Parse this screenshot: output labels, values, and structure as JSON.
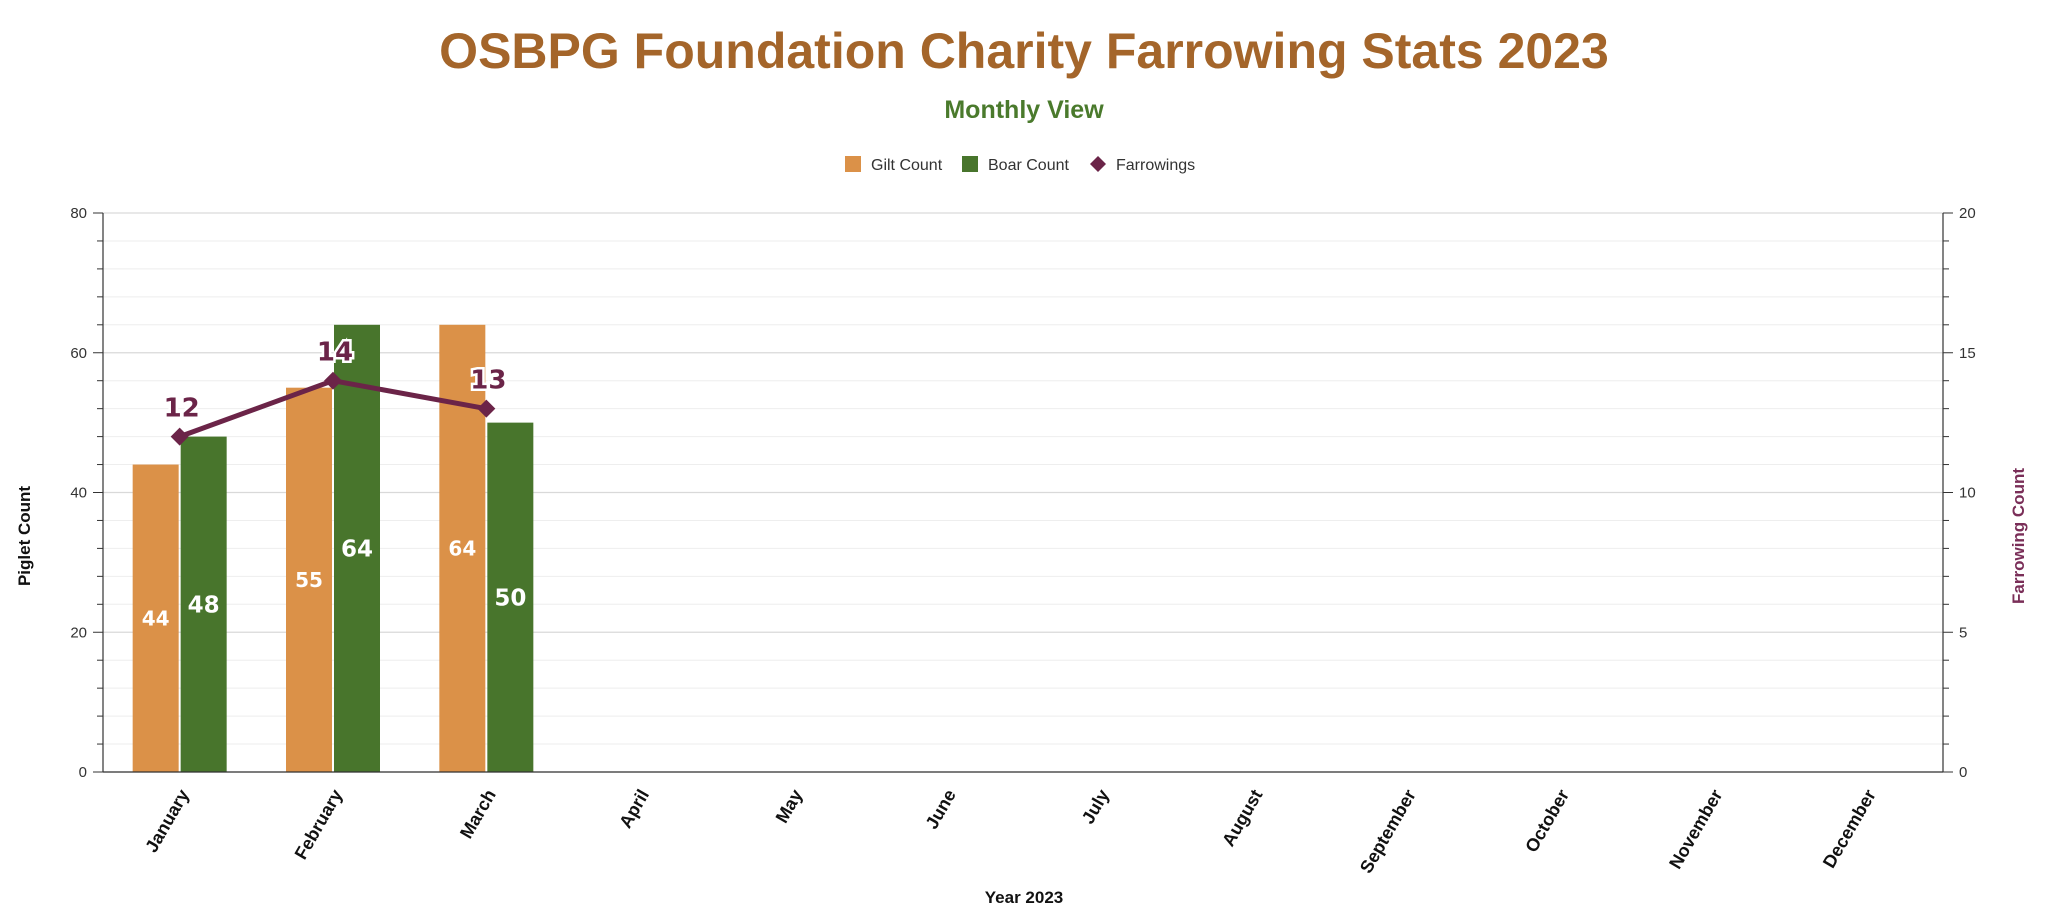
{
  "colors": {
    "title": "#A4652A",
    "subtitle": "#4A7A2C",
    "gilt": "#DB9148",
    "boar": "#48752C",
    "farrowings": "#6B2448",
    "right_axis_title": "#7A2E58"
  },
  "chart_data": {
    "type": "bar",
    "title": "OSBPG Foundation Charity Farrowing Stats 2023",
    "subtitle": "Monthly View",
    "xlabel": "Year 2023",
    "ylabel": "Piglet Count",
    "y2label": "Farrowing Count",
    "categories": [
      "January",
      "February",
      "March",
      "April",
      "May",
      "June",
      "July",
      "August",
      "September",
      "October",
      "November",
      "December"
    ],
    "ylim": [
      0,
      80
    ],
    "y2lim": [
      0,
      20
    ],
    "yticks": [
      0,
      20,
      40,
      60,
      80
    ],
    "y2ticks": [
      0,
      5,
      10,
      15,
      20
    ],
    "grid": true,
    "legend_position": "top-center",
    "series": [
      {
        "name": "Gilt Count",
        "type": "bar",
        "axis": "left",
        "values": [
          44,
          55,
          64,
          null,
          null,
          null,
          null,
          null,
          null,
          null,
          null,
          null
        ]
      },
      {
        "name": "Boar Count",
        "type": "bar",
        "axis": "left",
        "values": [
          48,
          64,
          50,
          null,
          null,
          null,
          null,
          null,
          null,
          null,
          null,
          null
        ]
      },
      {
        "name": "Farrowings",
        "type": "line",
        "axis": "right",
        "marker": "diamond",
        "values": [
          12,
          14,
          13,
          null,
          null,
          null,
          null,
          null,
          null,
          null,
          null,
          null
        ]
      }
    ]
  }
}
